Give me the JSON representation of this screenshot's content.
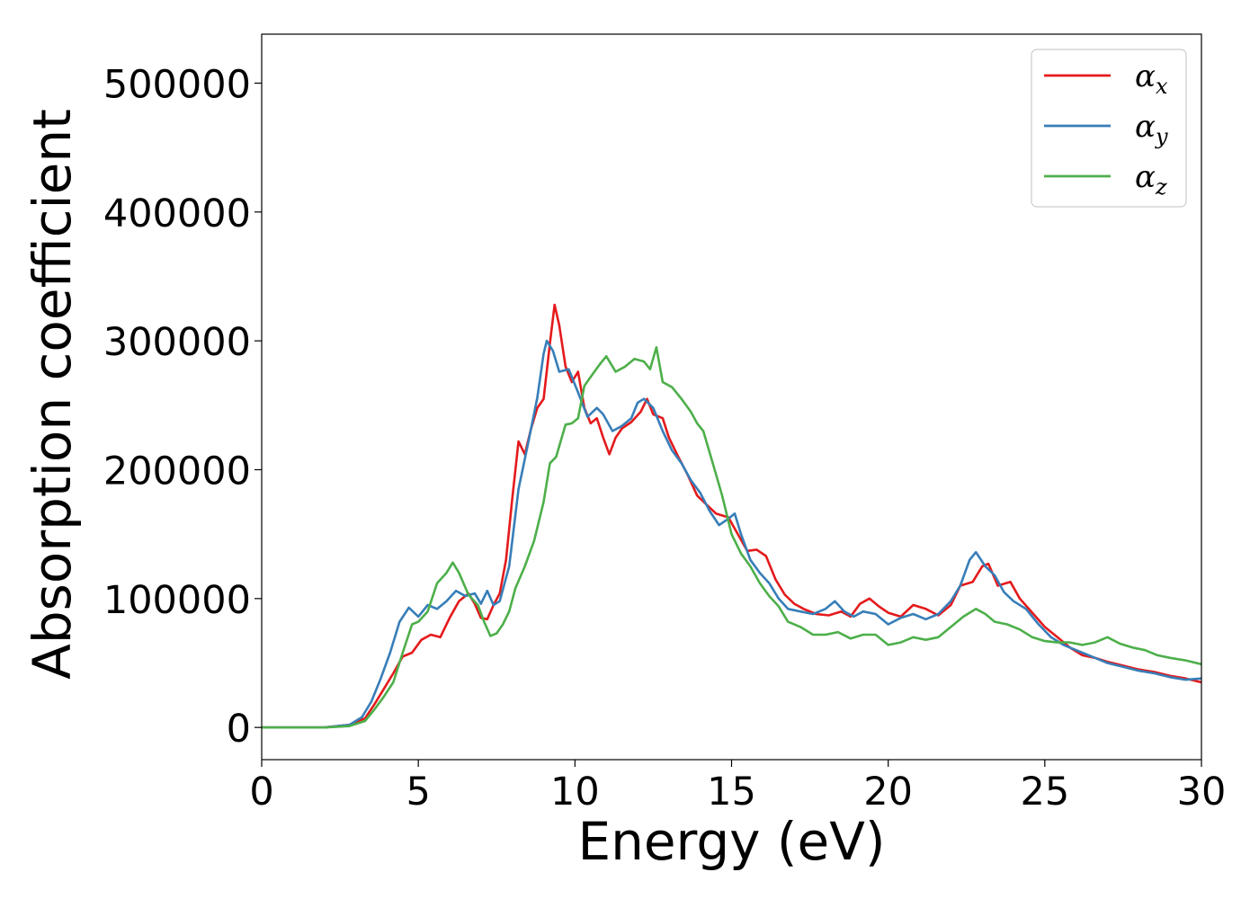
{
  "chart_data": {
    "type": "line",
    "title": "",
    "xlabel": "Energy (eV)",
    "ylabel": "Absorption coefficient",
    "xlim": [
      0,
      30
    ],
    "ylim": [
      -25000,
      538000
    ],
    "xticks": [
      0,
      5,
      10,
      15,
      20,
      25,
      30
    ],
    "yticks": [
      0,
      100000,
      200000,
      300000,
      400000,
      500000
    ],
    "grid": false,
    "legend_position": "top-right",
    "series": [
      {
        "name": "αx",
        "legend_base": "α",
        "legend_sub": "x",
        "color": "#e41a1c",
        "points": [
          [
            0,
            0
          ],
          [
            2,
            0
          ],
          [
            2.8,
            2000
          ],
          [
            3.3,
            7000
          ],
          [
            3.6,
            18000
          ],
          [
            3.9,
            30000
          ],
          [
            4.2,
            42000
          ],
          [
            4.5,
            55000
          ],
          [
            4.8,
            58000
          ],
          [
            5.1,
            68000
          ],
          [
            5.4,
            72000
          ],
          [
            5.7,
            70000
          ],
          [
            6.0,
            85000
          ],
          [
            6.3,
            98000
          ],
          [
            6.6,
            104000
          ],
          [
            6.8,
            96000
          ],
          [
            7.0,
            85000
          ],
          [
            7.2,
            84000
          ],
          [
            7.4,
            95000
          ],
          [
            7.6,
            104000
          ],
          [
            7.8,
            130000
          ],
          [
            8.0,
            178000
          ],
          [
            8.2,
            222000
          ],
          [
            8.4,
            212000
          ],
          [
            8.6,
            232000
          ],
          [
            8.8,
            248000
          ],
          [
            9.0,
            255000
          ],
          [
            9.2,
            298000
          ],
          [
            9.35,
            328000
          ],
          [
            9.5,
            312000
          ],
          [
            9.7,
            280000
          ],
          [
            9.9,
            268000
          ],
          [
            10.1,
            276000
          ],
          [
            10.3,
            248000
          ],
          [
            10.5,
            236000
          ],
          [
            10.7,
            240000
          ],
          [
            10.9,
            225000
          ],
          [
            11.1,
            212000
          ],
          [
            11.3,
            225000
          ],
          [
            11.5,
            232000
          ],
          [
            11.8,
            237000
          ],
          [
            12.1,
            245000
          ],
          [
            12.3,
            255000
          ],
          [
            12.5,
            243000
          ],
          [
            12.8,
            240000
          ],
          [
            13.0,
            225000
          ],
          [
            13.3,
            210000
          ],
          [
            13.6,
            196000
          ],
          [
            13.9,
            180000
          ],
          [
            14.2,
            173000
          ],
          [
            14.5,
            166000
          ],
          [
            14.9,
            163000
          ],
          [
            15.2,
            150000
          ],
          [
            15.5,
            137000
          ],
          [
            15.8,
            138000
          ],
          [
            16.1,
            133000
          ],
          [
            16.4,
            115000
          ],
          [
            16.7,
            103000
          ],
          [
            17.0,
            96000
          ],
          [
            17.3,
            92000
          ],
          [
            17.7,
            88000
          ],
          [
            18.1,
            87000
          ],
          [
            18.5,
            90000
          ],
          [
            18.8,
            86000
          ],
          [
            19.1,
            96000
          ],
          [
            19.4,
            100000
          ],
          [
            19.7,
            94000
          ],
          [
            20.0,
            89000
          ],
          [
            20.4,
            86000
          ],
          [
            20.8,
            95000
          ],
          [
            21.2,
            92000
          ],
          [
            21.6,
            87000
          ],
          [
            22.0,
            95000
          ],
          [
            22.3,
            110000
          ],
          [
            22.7,
            113000
          ],
          [
            23.0,
            125000
          ],
          [
            23.2,
            127000
          ],
          [
            23.5,
            110000
          ],
          [
            23.9,
            113000
          ],
          [
            24.2,
            100000
          ],
          [
            24.6,
            89000
          ],
          [
            25.0,
            78000
          ],
          [
            25.4,
            70000
          ],
          [
            25.8,
            62000
          ],
          [
            26.2,
            56000
          ],
          [
            26.6,
            54000
          ],
          [
            27.0,
            51000
          ],
          [
            27.5,
            48000
          ],
          [
            28.0,
            45000
          ],
          [
            28.5,
            43000
          ],
          [
            29.0,
            40000
          ],
          [
            29.5,
            38000
          ],
          [
            30,
            35000
          ]
        ]
      },
      {
        "name": "αy",
        "legend_base": "α",
        "legend_sub": "y",
        "color": "#377eb8",
        "points": [
          [
            0,
            0
          ],
          [
            2,
            0
          ],
          [
            2.8,
            2000
          ],
          [
            3.2,
            8000
          ],
          [
            3.5,
            20000
          ],
          [
            3.8,
            38000
          ],
          [
            4.1,
            58000
          ],
          [
            4.4,
            82000
          ],
          [
            4.7,
            93000
          ],
          [
            5.0,
            86000
          ],
          [
            5.3,
            95000
          ],
          [
            5.6,
            92000
          ],
          [
            5.9,
            98000
          ],
          [
            6.2,
            106000
          ],
          [
            6.5,
            102000
          ],
          [
            6.8,
            104000
          ],
          [
            7.0,
            96000
          ],
          [
            7.2,
            106000
          ],
          [
            7.4,
            95000
          ],
          [
            7.6,
            98000
          ],
          [
            7.9,
            125000
          ],
          [
            8.2,
            185000
          ],
          [
            8.5,
            220000
          ],
          [
            8.8,
            256000
          ],
          [
            9.0,
            290000
          ],
          [
            9.1,
            300000
          ],
          [
            9.3,
            292000
          ],
          [
            9.5,
            276000
          ],
          [
            9.8,
            278000
          ],
          [
            10.1,
            260000
          ],
          [
            10.4,
            241000
          ],
          [
            10.7,
            248000
          ],
          [
            10.9,
            243000
          ],
          [
            11.2,
            230000
          ],
          [
            11.5,
            234000
          ],
          [
            11.8,
            240000
          ],
          [
            12.0,
            252000
          ],
          [
            12.2,
            255000
          ],
          [
            12.5,
            248000
          ],
          [
            12.8,
            230000
          ],
          [
            13.1,
            215000
          ],
          [
            13.4,
            205000
          ],
          [
            13.7,
            192000
          ],
          [
            14.0,
            182000
          ],
          [
            14.3,
            168000
          ],
          [
            14.6,
            157000
          ],
          [
            14.9,
            162000
          ],
          [
            15.1,
            166000
          ],
          [
            15.3,
            150000
          ],
          [
            15.6,
            130000
          ],
          [
            15.9,
            120000
          ],
          [
            16.2,
            112000
          ],
          [
            16.5,
            100000
          ],
          [
            16.8,
            92000
          ],
          [
            17.2,
            90000
          ],
          [
            17.6,
            88000
          ],
          [
            18.0,
            92000
          ],
          [
            18.3,
            98000
          ],
          [
            18.6,
            90000
          ],
          [
            18.9,
            86000
          ],
          [
            19.2,
            90000
          ],
          [
            19.6,
            88000
          ],
          [
            20.0,
            80000
          ],
          [
            20.4,
            85000
          ],
          [
            20.8,
            88000
          ],
          [
            21.2,
            84000
          ],
          [
            21.6,
            88000
          ],
          [
            22.0,
            98000
          ],
          [
            22.3,
            110000
          ],
          [
            22.6,
            130000
          ],
          [
            22.8,
            136000
          ],
          [
            23.1,
            125000
          ],
          [
            23.4,
            118000
          ],
          [
            23.7,
            105000
          ],
          [
            24.0,
            98000
          ],
          [
            24.4,
            92000
          ],
          [
            24.8,
            80000
          ],
          [
            25.2,
            70000
          ],
          [
            25.6,
            64000
          ],
          [
            26.0,
            60000
          ],
          [
            26.5,
            55000
          ],
          [
            27.0,
            50000
          ],
          [
            27.5,
            47000
          ],
          [
            28.0,
            44000
          ],
          [
            28.5,
            42000
          ],
          [
            29.0,
            39000
          ],
          [
            29.5,
            37000
          ],
          [
            30,
            38000
          ]
        ]
      },
      {
        "name": "αz",
        "legend_base": "α",
        "legend_sub": "z",
        "color": "#4daf4a",
        "points": [
          [
            0,
            0
          ],
          [
            2,
            0
          ],
          [
            2.8,
            1000
          ],
          [
            3.3,
            5000
          ],
          [
            3.6,
            14000
          ],
          [
            3.9,
            24000
          ],
          [
            4.2,
            35000
          ],
          [
            4.5,
            58000
          ],
          [
            4.8,
            80000
          ],
          [
            5.0,
            82000
          ],
          [
            5.3,
            90000
          ],
          [
            5.6,
            112000
          ],
          [
            5.9,
            120000
          ],
          [
            6.1,
            128000
          ],
          [
            6.3,
            120000
          ],
          [
            6.6,
            103000
          ],
          [
            6.9,
            95000
          ],
          [
            7.1,
            82000
          ],
          [
            7.3,
            71000
          ],
          [
            7.5,
            73000
          ],
          [
            7.7,
            80000
          ],
          [
            7.9,
            90000
          ],
          [
            8.1,
            108000
          ],
          [
            8.4,
            125000
          ],
          [
            8.7,
            145000
          ],
          [
            9.0,
            175000
          ],
          [
            9.2,
            205000
          ],
          [
            9.4,
            210000
          ],
          [
            9.7,
            235000
          ],
          [
            9.9,
            236000
          ],
          [
            10.1,
            240000
          ],
          [
            10.3,
            265000
          ],
          [
            10.5,
            272000
          ],
          [
            10.8,
            282000
          ],
          [
            11.0,
            288000
          ],
          [
            11.3,
            276000
          ],
          [
            11.6,
            280000
          ],
          [
            11.9,
            286000
          ],
          [
            12.2,
            284000
          ],
          [
            12.4,
            278000
          ],
          [
            12.6,
            295000
          ],
          [
            12.8,
            268000
          ],
          [
            13.1,
            264000
          ],
          [
            13.4,
            255000
          ],
          [
            13.7,
            245000
          ],
          [
            13.9,
            236000
          ],
          [
            14.1,
            230000
          ],
          [
            14.4,
            205000
          ],
          [
            14.7,
            180000
          ],
          [
            15.0,
            150000
          ],
          [
            15.3,
            135000
          ],
          [
            15.6,
            125000
          ],
          [
            15.9,
            112000
          ],
          [
            16.2,
            102000
          ],
          [
            16.5,
            94000
          ],
          [
            16.8,
            82000
          ],
          [
            17.2,
            78000
          ],
          [
            17.6,
            72000
          ],
          [
            18.0,
            72000
          ],
          [
            18.4,
            74000
          ],
          [
            18.8,
            69000
          ],
          [
            19.2,
            72000
          ],
          [
            19.6,
            72000
          ],
          [
            20.0,
            64000
          ],
          [
            20.4,
            66000
          ],
          [
            20.8,
            70000
          ],
          [
            21.2,
            68000
          ],
          [
            21.6,
            70000
          ],
          [
            22.0,
            78000
          ],
          [
            22.4,
            86000
          ],
          [
            22.8,
            92000
          ],
          [
            23.1,
            88000
          ],
          [
            23.4,
            82000
          ],
          [
            23.8,
            80000
          ],
          [
            24.2,
            76000
          ],
          [
            24.6,
            70000
          ],
          [
            25.0,
            67000
          ],
          [
            25.4,
            66000
          ],
          [
            25.8,
            66000
          ],
          [
            26.2,
            64000
          ],
          [
            26.6,
            66000
          ],
          [
            27.0,
            70000
          ],
          [
            27.4,
            65000
          ],
          [
            27.8,
            62000
          ],
          [
            28.2,
            60000
          ],
          [
            28.6,
            56000
          ],
          [
            29.0,
            54000
          ],
          [
            29.5,
            52000
          ],
          [
            30,
            49000
          ]
        ]
      }
    ]
  }
}
